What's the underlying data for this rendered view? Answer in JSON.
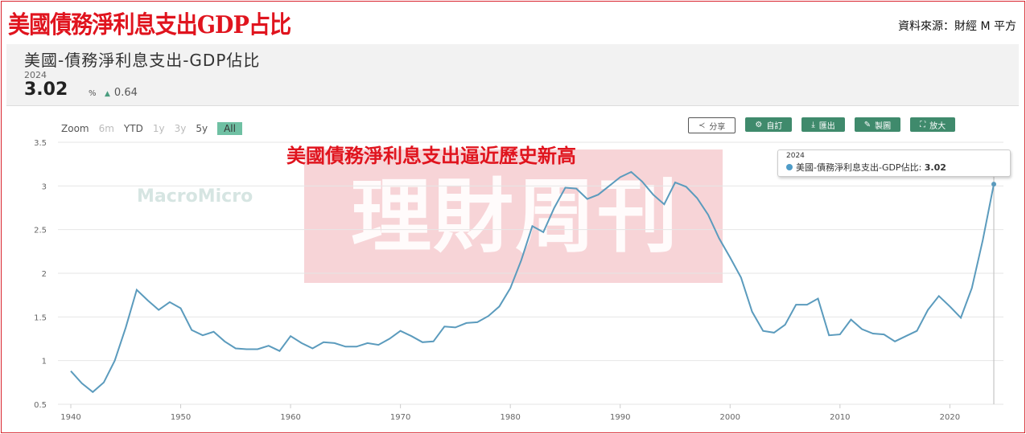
{
  "headline": "美國債務淨利息支出GDP占比",
  "source": "資料來源：財經 M 平方",
  "panel": {
    "title": "美國-債務淨利息支出-GDP佔比",
    "year": "2024",
    "value": "3.02",
    "unit": "%",
    "change": "0.64",
    "change_icon": "triangle-up-icon"
  },
  "zoom": {
    "label": "Zoom",
    "options": [
      "6m",
      "YTD",
      "1y",
      "3y",
      "5y",
      "All"
    ],
    "active": "All"
  },
  "toolbar": {
    "share": "分享",
    "customize": "自訂",
    "export": "匯出",
    "draw": "製圖",
    "expand": "放大"
  },
  "annotation": "美國債務淨利息支出逼近歷史新高",
  "watermark": {
    "publisher": "理財周刊",
    "source_logo": "MacroMicro"
  },
  "tooltip": {
    "year": "2024",
    "series": "美國-債務淨利息支出-GDP佔比",
    "value": "3.02"
  },
  "colors": {
    "line": "#5b9bbd",
    "accent": "#3f8a6c",
    "headline": "#e0141e"
  },
  "chart_data": {
    "type": "line",
    "title": "美國-債務淨利息支出-GDP佔比",
    "xlabel": "",
    "ylabel": "",
    "xlim": [
      1940,
      2024
    ],
    "ylim": [
      0.5,
      3.5
    ],
    "xticks": [
      1940,
      1950,
      1960,
      1970,
      1980,
      1990,
      2000,
      2010,
      2020
    ],
    "yticks": [
      "0.5",
      "1",
      "1.5",
      "2",
      "2.5",
      "3",
      "3.5"
    ],
    "grid": true,
    "series": [
      {
        "name": "美國-債務淨利息支出-GDP佔比",
        "x": [
          1940,
          1941,
          1942,
          1943,
          1944,
          1945,
          1946,
          1947,
          1948,
          1949,
          1950,
          1951,
          1952,
          1953,
          1954,
          1955,
          1956,
          1957,
          1958,
          1959,
          1960,
          1961,
          1962,
          1963,
          1964,
          1965,
          1966,
          1967,
          1968,
          1969,
          1970,
          1971,
          1972,
          1973,
          1974,
          1975,
          1976,
          1977,
          1978,
          1979,
          1980,
          1981,
          1982,
          1983,
          1984,
          1985,
          1986,
          1987,
          1988,
          1989,
          1990,
          1991,
          1992,
          1993,
          1994,
          1995,
          1996,
          1997,
          1998,
          1999,
          2000,
          2001,
          2002,
          2003,
          2004,
          2005,
          2006,
          2007,
          2008,
          2009,
          2010,
          2011,
          2012,
          2013,
          2014,
          2015,
          2016,
          2017,
          2018,
          2019,
          2020,
          2021,
          2022,
          2023,
          2024
        ],
        "y": [
          0.88,
          0.74,
          0.64,
          0.75,
          1.0,
          1.38,
          1.81,
          1.69,
          1.58,
          1.67,
          1.6,
          1.35,
          1.29,
          1.33,
          1.22,
          1.14,
          1.13,
          1.13,
          1.17,
          1.11,
          1.28,
          1.2,
          1.14,
          1.21,
          1.2,
          1.16,
          1.16,
          1.2,
          1.18,
          1.25,
          1.34,
          1.28,
          1.21,
          1.22,
          1.39,
          1.38,
          1.43,
          1.44,
          1.51,
          1.62,
          1.83,
          2.15,
          2.54,
          2.47,
          2.75,
          2.98,
          2.97,
          2.85,
          2.9,
          3.0,
          3.1,
          3.16,
          3.05,
          2.9,
          2.79,
          3.04,
          2.99,
          2.86,
          2.67,
          2.4,
          2.18,
          1.95,
          1.56,
          1.34,
          1.32,
          1.41,
          1.64,
          1.64,
          1.71,
          1.29,
          1.3,
          1.47,
          1.36,
          1.31,
          1.3,
          1.22,
          1.28,
          1.34,
          1.58,
          1.74,
          1.62,
          1.49,
          1.83,
          2.38,
          3.02
        ]
      }
    ]
  }
}
